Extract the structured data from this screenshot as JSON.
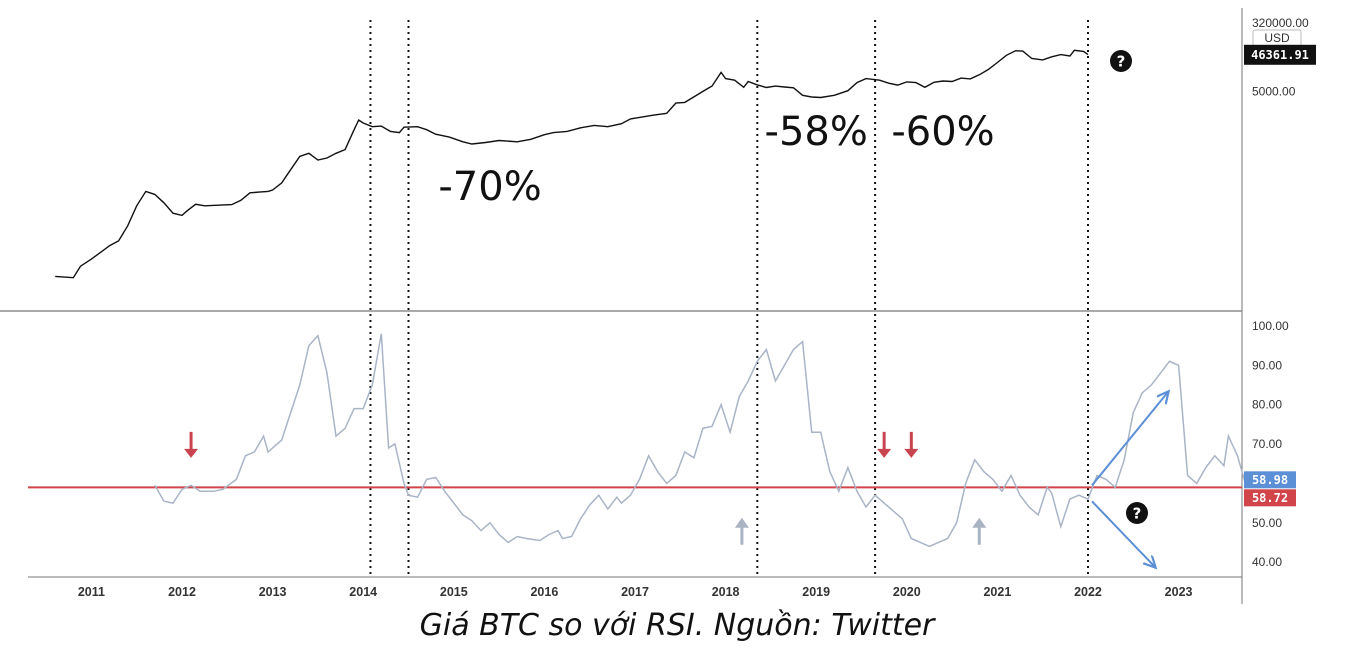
{
  "caption": "Giá BTC so với RSI. Nguồn: Twitter",
  "colors": {
    "price_line": "#111111",
    "rsi_line": "#a9b4c6",
    "threshold_line": "#d0444a",
    "up_arrow": "#5b8fd6",
    "down_arrow": "#5b8fd6",
    "red_marker": "#c8454f",
    "gray_marker": "#aab3c1",
    "badge_blue": "#5b8fd6",
    "badge_red": "#d0444a",
    "badge_black": "#111111"
  },
  "chart_data": [
    {
      "type": "line",
      "title": "",
      "y_axis": {
        "unit": "USD",
        "scale": "log",
        "tick_labels": [
          "320000.00",
          "5000.00"
        ],
        "ticks": [
          320000,
          5000
        ]
      },
      "current_price_label": "46361.91",
      "current_price": 46361.91,
      "series": [
        {
          "values": [
            [
              2010.6,
              0.07
            ],
            [
              2010.8,
              0.065
            ],
            [
              2010.88,
              0.13
            ],
            [
              2011.0,
              0.2
            ],
            [
              2011.1,
              0.3
            ],
            [
              2011.2,
              0.45
            ],
            [
              2011.3,
              0.6
            ],
            [
              2011.4,
              1.5
            ],
            [
              2011.5,
              5
            ],
            [
              2011.6,
              12
            ],
            [
              2011.7,
              10
            ],
            [
              2011.8,
              6
            ],
            [
              2011.9,
              3.2
            ],
            [
              2012.0,
              2.8
            ],
            [
              2012.05,
              3.6
            ],
            [
              2012.15,
              5.5
            ],
            [
              2012.25,
              5
            ],
            [
              2012.4,
              5.2
            ],
            [
              2012.55,
              5.4
            ],
            [
              2012.65,
              7
            ],
            [
              2012.75,
              11
            ],
            [
              2012.85,
              11.5
            ],
            [
              2012.95,
              12
            ],
            [
              2013.0,
              13
            ],
            [
              2013.1,
              20
            ],
            [
              2013.15,
              30
            ],
            [
              2013.3,
              100
            ],
            [
              2013.4,
              120
            ],
            [
              2013.5,
              80
            ],
            [
              2013.6,
              90
            ],
            [
              2013.7,
              120
            ],
            [
              2013.8,
              150
            ],
            [
              2013.9,
              500
            ],
            [
              2013.95,
              900
            ],
            [
              2014.0,
              750
            ],
            [
              2014.1,
              600
            ],
            [
              2014.2,
              620
            ],
            [
              2014.3,
              450
            ],
            [
              2014.4,
              420
            ],
            [
              2014.45,
              580
            ],
            [
              2014.6,
              600
            ],
            [
              2014.7,
              500
            ],
            [
              2014.8,
              380
            ],
            [
              2014.95,
              320
            ],
            [
              2015.1,
              240
            ],
            [
              2015.2,
              210
            ],
            [
              2015.35,
              230
            ],
            [
              2015.5,
              260
            ],
            [
              2015.7,
              240
            ],
            [
              2015.85,
              280
            ],
            [
              2016.0,
              370
            ],
            [
              2016.1,
              420
            ],
            [
              2016.25,
              450
            ],
            [
              2016.4,
              560
            ],
            [
              2016.55,
              650
            ],
            [
              2016.7,
              600
            ],
            [
              2016.85,
              720
            ],
            [
              2016.95,
              960
            ],
            [
              2017.05,
              1050
            ],
            [
              2017.2,
              1200
            ],
            [
              2017.35,
              1350
            ],
            [
              2017.45,
              2500
            ],
            [
              2017.55,
              2600
            ],
            [
              2017.7,
              4300
            ],
            [
              2017.8,
              6000
            ],
            [
              2017.85,
              7000
            ],
            [
              2017.95,
              16000
            ],
            [
              2018.0,
              11000
            ],
            [
              2018.1,
              10000
            ],
            [
              2018.2,
              6500
            ],
            [
              2018.25,
              9200
            ],
            [
              2018.35,
              7500
            ],
            [
              2018.45,
              6400
            ],
            [
              2018.55,
              7000
            ],
            [
              2018.65,
              6600
            ],
            [
              2018.75,
              6300
            ],
            [
              2018.85,
              4000
            ],
            [
              2018.95,
              3600
            ],
            [
              2019.05,
              3500
            ],
            [
              2019.2,
              4000
            ],
            [
              2019.35,
              5300
            ],
            [
              2019.45,
              8600
            ],
            [
              2019.55,
              11000
            ],
            [
              2019.7,
              10000
            ],
            [
              2019.8,
              8300
            ],
            [
              2019.9,
              7400
            ],
            [
              2020.0,
              9000
            ],
            [
              2020.1,
              8600
            ],
            [
              2020.2,
              6500
            ],
            [
              2020.3,
              8800
            ],
            [
              2020.4,
              9500
            ],
            [
              2020.5,
              9200
            ],
            [
              2020.6,
              11300
            ],
            [
              2020.7,
              10800
            ],
            [
              2020.8,
              13800
            ],
            [
              2020.9,
              19000
            ],
            [
              2021.0,
              29000
            ],
            [
              2021.1,
              45000
            ],
            [
              2021.2,
              59000
            ],
            [
              2021.28,
              58000
            ],
            [
              2021.38,
              37000
            ],
            [
              2021.5,
              34000
            ],
            [
              2021.6,
              41000
            ],
            [
              2021.7,
              47000
            ],
            [
              2021.8,
              43000
            ],
            [
              2021.85,
              61000
            ],
            [
              2021.95,
              57000
            ],
            [
              2022.0,
              47000
            ]
          ]
        }
      ],
      "annotations": [
        {
          "text": "-70%",
          "x": 2015.4
        },
        {
          "text": "-58%",
          "x": 2019.0
        },
        {
          "text": "-60%",
          "x": 2020.4
        }
      ]
    },
    {
      "type": "line",
      "title": "",
      "x_tick_labels": [
        "2011",
        "2012",
        "2013",
        "2014",
        "2015",
        "2016",
        "2017",
        "2018",
        "2019",
        "2020",
        "2021",
        "2022",
        "2023"
      ],
      "x_ticks": [
        2011,
        2012,
        2013,
        2014,
        2015,
        2016,
        2017,
        2018,
        2019,
        2020,
        2021,
        2022,
        2023
      ],
      "xlim": [
        2010.3,
        2023.7
      ],
      "ylim": [
        38,
        102
      ],
      "y_tick_labels": [
        "100.00",
        "90.00",
        "80.00",
        "70.00",
        "50.00",
        "40.00"
      ],
      "y_ticks": [
        100,
        90,
        80,
        70,
        50,
        40
      ],
      "threshold_value": 59,
      "badges": [
        {
          "label": "58.98",
          "value": 58.98,
          "color_key": "badge_blue"
        },
        {
          "label": "58.72",
          "value": 58.72,
          "color_key": "badge_red"
        }
      ],
      "vertical_markers_x": [
        2014.08,
        2014.5,
        2018.35,
        2019.65,
        2022.0
      ],
      "series": [
        {
          "values": [
            [
              2011.7,
              59.5
            ],
            [
              2011.8,
              55.5
            ],
            [
              2011.9,
              55
            ],
            [
              2012.0,
              58.5
            ],
            [
              2012.1,
              59.5
            ],
            [
              2012.2,
              58
            ],
            [
              2012.35,
              58
            ],
            [
              2012.45,
              58.5
            ],
            [
              2012.6,
              61
            ],
            [
              2012.7,
              67
            ],
            [
              2012.8,
              68
            ],
            [
              2012.9,
              72
            ],
            [
              2012.95,
              68
            ],
            [
              2013.1,
              71
            ],
            [
              2013.2,
              78
            ],
            [
              2013.3,
              85
            ],
            [
              2013.4,
              95
            ],
            [
              2013.5,
              97.5
            ],
            [
              2013.6,
              88
            ],
            [
              2013.7,
              72
            ],
            [
              2013.8,
              74
            ],
            [
              2013.9,
              79
            ],
            [
              2014.0,
              79
            ],
            [
              2014.1,
              85
            ],
            [
              2014.2,
              98
            ],
            [
              2014.28,
              69
            ],
            [
              2014.35,
              70
            ],
            [
              2014.45,
              60
            ],
            [
              2014.5,
              57
            ],
            [
              2014.6,
              56.5
            ],
            [
              2014.7,
              61
            ],
            [
              2014.8,
              61.5
            ],
            [
              2014.9,
              58
            ],
            [
              2015.0,
              55
            ],
            [
              2015.1,
              52
            ],
            [
              2015.2,
              50.5
            ],
            [
              2015.3,
              48
            ],
            [
              2015.4,
              50
            ],
            [
              2015.5,
              47
            ],
            [
              2015.6,
              45
            ],
            [
              2015.7,
              46.5
            ],
            [
              2015.8,
              46
            ],
            [
              2015.95,
              45.5
            ],
            [
              2016.05,
              47
            ],
            [
              2016.15,
              48
            ],
            [
              2016.2,
              46
            ],
            [
              2016.3,
              46.5
            ],
            [
              2016.4,
              51
            ],
            [
              2016.5,
              54.5
            ],
            [
              2016.6,
              57
            ],
            [
              2016.7,
              53.5
            ],
            [
              2016.8,
              56.5
            ],
            [
              2016.85,
              55
            ],
            [
              2016.95,
              57
            ],
            [
              2017.05,
              61
            ],
            [
              2017.15,
              67
            ],
            [
              2017.25,
              63
            ],
            [
              2017.35,
              60
            ],
            [
              2017.45,
              62
            ],
            [
              2017.55,
              68
            ],
            [
              2017.65,
              66.5
            ],
            [
              2017.75,
              74
            ],
            [
              2017.85,
              74.5
            ],
            [
              2017.95,
              80
            ],
            [
              2018.05,
              73
            ],
            [
              2018.15,
              82
            ],
            [
              2018.25,
              86
            ],
            [
              2018.35,
              91
            ],
            [
              2018.45,
              94
            ],
            [
              2018.55,
              86
            ],
            [
              2018.65,
              90
            ],
            [
              2018.75,
              94
            ],
            [
              2018.85,
              96
            ],
            [
              2018.95,
              73
            ],
            [
              2019.05,
              73
            ],
            [
              2019.15,
              63
            ],
            [
              2019.25,
              58
            ],
            [
              2019.35,
              64
            ],
            [
              2019.45,
              58
            ],
            [
              2019.55,
              54
            ],
            [
              2019.65,
              57
            ],
            [
              2019.75,
              55
            ],
            [
              2019.85,
              53
            ],
            [
              2019.95,
              51
            ],
            [
              2020.05,
              46
            ],
            [
              2020.15,
              45
            ],
            [
              2020.25,
              44
            ],
            [
              2020.35,
              45
            ],
            [
              2020.45,
              46
            ],
            [
              2020.55,
              50
            ],
            [
              2020.65,
              60
            ],
            [
              2020.75,
              66
            ],
            [
              2020.85,
              63
            ],
            [
              2020.95,
              61
            ],
            [
              2021.05,
              58
            ],
            [
              2021.15,
              62
            ],
            [
              2021.25,
              57
            ],
            [
              2021.35,
              54
            ],
            [
              2021.45,
              52
            ],
            [
              2021.55,
              59
            ],
            [
              2021.6,
              57.5
            ],
            [
              2021.7,
              49
            ],
            [
              2021.8,
              56
            ],
            [
              2021.9,
              57
            ],
            [
              2022.0,
              56
            ],
            [
              2022.1,
              62
            ],
            [
              2022.2,
              61
            ],
            [
              2022.3,
              59
            ],
            [
              2022.4,
              66
            ],
            [
              2022.5,
              78
            ],
            [
              2022.6,
              83
            ],
            [
              2022.7,
              85
            ],
            [
              2022.8,
              88
            ],
            [
              2022.9,
              91
            ],
            [
              2023.0,
              90
            ],
            [
              2023.1,
              62
            ],
            [
              2023.2,
              60
            ],
            [
              2023.3,
              64
            ],
            [
              2023.4,
              67
            ],
            [
              2023.5,
              64.5
            ],
            [
              2023.55,
              72
            ],
            [
              2023.65,
              67
            ],
            [
              2023.75,
              59
            ]
          ]
        }
      ],
      "markers": [
        {
          "kind": "red-down",
          "x": 2012.1,
          "value": 68
        },
        {
          "kind": "red-down",
          "x": 2019.75,
          "value": 68
        },
        {
          "kind": "red-down",
          "x": 2020.05,
          "value": 68
        },
        {
          "kind": "gray-up",
          "x": 2018.18,
          "value": 50
        },
        {
          "kind": "gray-up",
          "x": 2020.8,
          "value": 50
        }
      ]
    }
  ]
}
